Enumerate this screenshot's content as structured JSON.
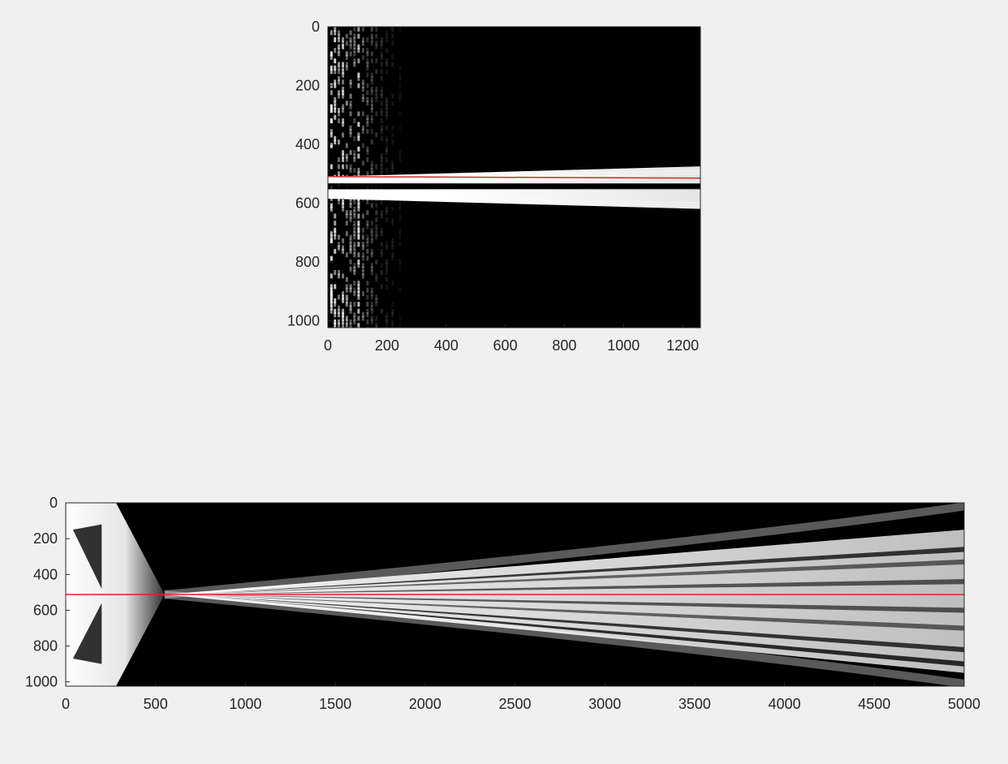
{
  "figure": {
    "background": "#f0f0f0"
  },
  "chart_data": [
    {
      "type": "heatmap",
      "colormap": "gray",
      "xlim": [
        0,
        1260
      ],
      "ylim": [
        0,
        1024
      ],
      "y_reversed": true,
      "x_ticks": [
        "0",
        "200",
        "400",
        "600",
        "800",
        "1000",
        "1200"
      ],
      "y_ticks": [
        "0",
        "200",
        "400",
        "600",
        "800",
        "1000"
      ],
      "overlay_line": {
        "color": "#d62728",
        "x": [
          0,
          1260
        ],
        "y": [
          510,
          515
        ]
      },
      "features": [
        {
          "description": "bright band",
          "x_range": [
            0,
            1260
          ],
          "y_center": 545,
          "half_width_at_start": 40,
          "half_width_at_end": 75
        },
        {
          "description": "speckled vertical columns",
          "x_range": [
            0,
            270
          ]
        }
      ],
      "title": "",
      "xlabel": "",
      "ylabel": "",
      "grid": false
    },
    {
      "type": "heatmap",
      "colormap": "gray",
      "xlim": [
        0,
        5000
      ],
      "ylim": [
        0,
        1024
      ],
      "y_reversed": true,
      "x_ticks": [
        "0",
        "500",
        "1000",
        "1500",
        "2000",
        "2500",
        "3000",
        "3500",
        "4000",
        "4500",
        "5000"
      ],
      "y_ticks": [
        "0",
        "200",
        "400",
        "600",
        "800",
        "1000"
      ],
      "overlay_line": {
        "color": "#d62728",
        "x": [
          0,
          5000
        ],
        "y": [
          512,
          512
        ]
      },
      "features": [
        {
          "description": "focus point",
          "x": 550,
          "y": 512
        },
        {
          "description": "diverging bright beam",
          "x_range": [
            550,
            5000
          ],
          "y_spread_at_end": [
            150,
            950
          ]
        },
        {
          "description": "bright triangular region",
          "x_range": [
            0,
            550
          ]
        }
      ],
      "title": "",
      "xlabel": "",
      "ylabel": "",
      "grid": false
    }
  ]
}
